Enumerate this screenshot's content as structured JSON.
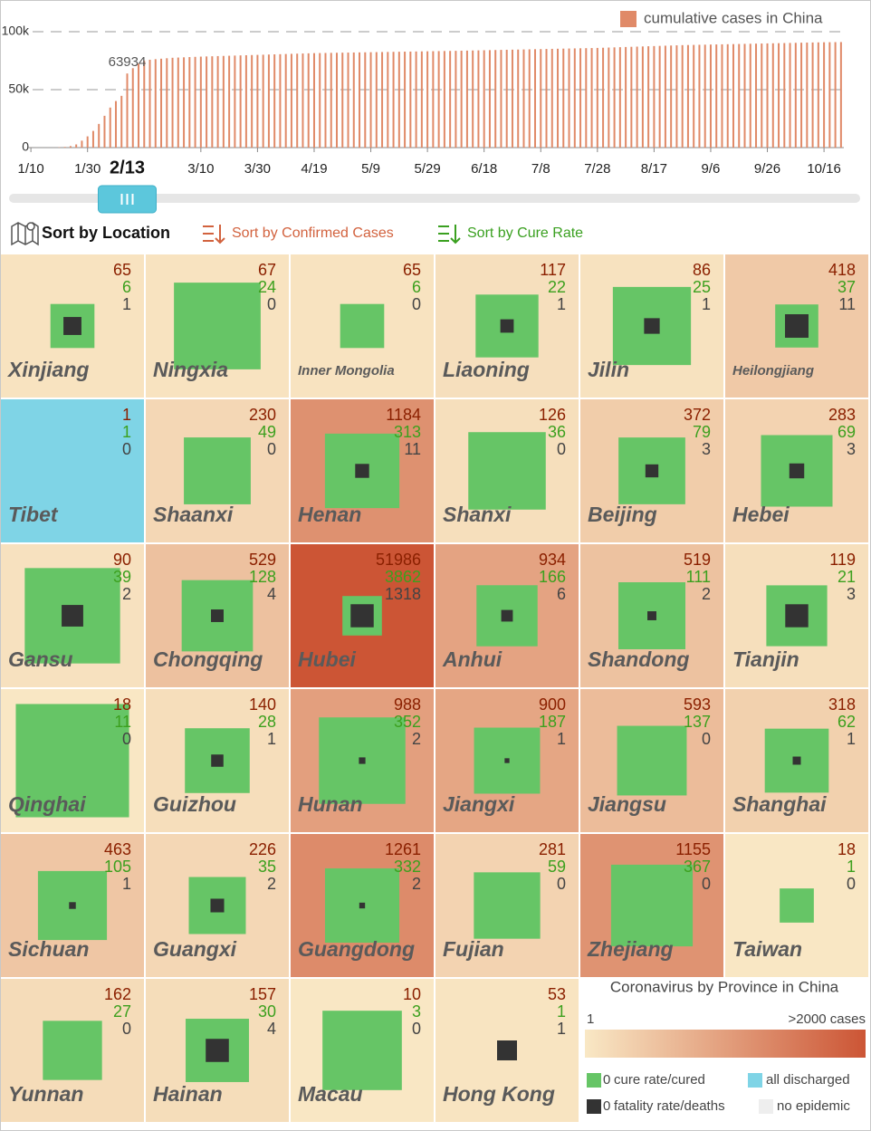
{
  "chart_data": [
    {
      "type": "bar",
      "series": [
        {
          "name": "cumulative cases in China",
          "color": "#e08a68",
          "values": [
            41,
            41,
            41,
            41,
            45,
            291,
            571,
            1287,
            2744,
            5974,
            9692,
            14380,
            20438,
            27440,
            34546,
            40171,
            44653,
            63934,
            68500,
            72436,
            75100,
            75800,
            76300,
            76700,
            77100,
            77500,
            77700,
            77900,
            78100,
            78300,
            78500,
            78650,
            78800,
            78950,
            79100,
            79250,
            79400,
            79550,
            79700,
            79850,
            80000,
            80150,
            80300,
            80450,
            80600,
            80750,
            80900,
            81050,
            81200,
            81350,
            81500,
            81580,
            81660,
            81740,
            81820,
            81900,
            81980,
            82060,
            82140,
            82220,
            82300,
            82380,
            82460,
            82540,
            82620,
            82700,
            82780,
            82860,
            82940,
            83020,
            83100,
            83180,
            83260,
            83340,
            83420,
            83500,
            83600,
            83700,
            83800,
            83900,
            84000,
            84100,
            84200,
            84300,
            84400,
            84500,
            84600,
            84700,
            84800,
            84900,
            85000,
            85100,
            85200,
            85300,
            85400,
            85500,
            85600,
            85700,
            85800,
            85900,
            86000,
            86160,
            86320,
            86480,
            86640,
            86800,
            86960,
            87120,
            87280,
            87440,
            87600,
            87760,
            87920,
            88080,
            88240,
            88400,
            88500,
            88600,
            88700,
            88800,
            88900,
            89000,
            89100,
            89200,
            89300,
            89400,
            89500,
            89600,
            89700,
            89800,
            89900,
            90000,
            90100,
            90200,
            90300,
            90400,
            90500,
            90600,
            90700,
            90800,
            90900,
            90950,
            91000,
            91050
          ]
        }
      ],
      "x": [
        0,
        2,
        4,
        6,
        8,
        10,
        12,
        14,
        16,
        18,
        20,
        22,
        24,
        26,
        28,
        30,
        32,
        34,
        36,
        38,
        40,
        42,
        44,
        46,
        48,
        50,
        52,
        54,
        56,
        58,
        60,
        62,
        64,
        66,
        68,
        70,
        72,
        74,
        76,
        78,
        80,
        82,
        84,
        86,
        88,
        90,
        92,
        94,
        96,
        98,
        100,
        102,
        104,
        106,
        108,
        110,
        112,
        114,
        116,
        118,
        120,
        122,
        124,
        126,
        128,
        130,
        132,
        134,
        136,
        138,
        140,
        142,
        144,
        146,
        148,
        150,
        152,
        154,
        156,
        158,
        160,
        162,
        164,
        166,
        168,
        170,
        172,
        174,
        176,
        178,
        180,
        182,
        184,
        186,
        188,
        190,
        192,
        194,
        196,
        198,
        200,
        202,
        204,
        206,
        208,
        210,
        212,
        214,
        216,
        218,
        220,
        222,
        224,
        226,
        228,
        230,
        232,
        234,
        236,
        238,
        240,
        242,
        244,
        246,
        248,
        250,
        252,
        254,
        256,
        258,
        260,
        262,
        264,
        266,
        268,
        270,
        272,
        274,
        276,
        278,
        280,
        282,
        284,
        286
      ],
      "xlim": [
        -1,
        287
      ],
      "xticks": [
        {
          "value": 0,
          "label": "1/10"
        },
        {
          "value": 20,
          "label": "1/30"
        },
        {
          "value": 60,
          "label": "3/10"
        },
        {
          "value": 80,
          "label": "3/30"
        },
        {
          "value": 100,
          "label": "4/19"
        },
        {
          "value": 120,
          "label": "5/9"
        },
        {
          "value": 140,
          "label": "5/29"
        },
        {
          "value": 160,
          "label": "6/18"
        },
        {
          "value": 180,
          "label": "7/8"
        },
        {
          "value": 200,
          "label": "7/28"
        },
        {
          "value": 220,
          "label": "8/17"
        },
        {
          "value": 240,
          "label": "9/6"
        },
        {
          "value": 260,
          "label": "9/26"
        },
        {
          "value": 280,
          "label": "10/16"
        }
      ],
      "current": {
        "value": 34,
        "label": "2/13"
      },
      "ylim": [
        0,
        100000
      ],
      "yticks": [
        0,
        {
          "value": 50000,
          "label": "50k"
        },
        {
          "value": 100000,
          "label": "100k"
        }
      ],
      "grid": true
    },
    {
      "type": "tile-grid",
      "title": "Coronavirus by Province in China",
      "columns": 6,
      "tiles": [
        {
          "name": "Xinjiang",
          "confirmed": 65,
          "cured": 6,
          "deaths": 1
        },
        {
          "name": "Ningxia",
          "confirmed": 67,
          "cured": 24,
          "deaths": 0
        },
        {
          "name": "Inner Mongolia",
          "confirmed": 65,
          "cured": 6,
          "deaths": 0
        },
        {
          "name": "Liaoning",
          "confirmed": 117,
          "cured": 22,
          "deaths": 1
        },
        {
          "name": "Jilin",
          "confirmed": 86,
          "cured": 25,
          "deaths": 1
        },
        {
          "name": "Heilongjiang",
          "confirmed": 418,
          "cured": 37,
          "deaths": 11
        },
        {
          "name": "Tibet",
          "confirmed": 1,
          "cured": 1,
          "deaths": 0
        },
        {
          "name": "Shaanxi",
          "confirmed": 230,
          "cured": 49,
          "deaths": 0
        },
        {
          "name": "Henan",
          "confirmed": 1184,
          "cured": 313,
          "deaths": 11
        },
        {
          "name": "Shanxi",
          "confirmed": 126,
          "cured": 36,
          "deaths": 0
        },
        {
          "name": "Beijing",
          "confirmed": 372,
          "cured": 79,
          "deaths": 3
        },
        {
          "name": "Hebei",
          "confirmed": 283,
          "cured": 69,
          "deaths": 3
        },
        {
          "name": "Gansu",
          "confirmed": 90,
          "cured": 39,
          "deaths": 2
        },
        {
          "name": "Chongqing",
          "confirmed": 529,
          "cured": 128,
          "deaths": 4
        },
        {
          "name": "Hubei",
          "confirmed": 51986,
          "cured": 3862,
          "deaths": 1318
        },
        {
          "name": "Anhui",
          "confirmed": 934,
          "cured": 166,
          "deaths": 6
        },
        {
          "name": "Shandong",
          "confirmed": 519,
          "cured": 111,
          "deaths": 2
        },
        {
          "name": "Tianjin",
          "confirmed": 119,
          "cured": 21,
          "deaths": 3
        },
        {
          "name": "Qinghai",
          "confirmed": 18,
          "cured": 11,
          "deaths": 0
        },
        {
          "name": "Guizhou",
          "confirmed": 140,
          "cured": 28,
          "deaths": 1
        },
        {
          "name": "Hunan",
          "confirmed": 988,
          "cured": 352,
          "deaths": 2
        },
        {
          "name": "Jiangxi",
          "confirmed": 900,
          "cured": 187,
          "deaths": 1
        },
        {
          "name": "Jiangsu",
          "confirmed": 593,
          "cured": 137,
          "deaths": 0
        },
        {
          "name": "Shanghai",
          "confirmed": 318,
          "cured": 62,
          "deaths": 1
        },
        {
          "name": "Sichuan",
          "confirmed": 463,
          "cured": 105,
          "deaths": 1
        },
        {
          "name": "Guangxi",
          "confirmed": 226,
          "cured": 35,
          "deaths": 2
        },
        {
          "name": "Guangdong",
          "confirmed": 1261,
          "cured": 332,
          "deaths": 2
        },
        {
          "name": "Fujian",
          "confirmed": 281,
          "cured": 59,
          "deaths": 0
        },
        {
          "name": "Zhejiang",
          "confirmed": 1155,
          "cured": 367,
          "deaths": 0
        },
        {
          "name": "Taiwan",
          "confirmed": 18,
          "cured": 1,
          "deaths": 0
        },
        {
          "name": "Yunnan",
          "confirmed": 162,
          "cured": 27,
          "deaths": 0
        },
        {
          "name": "Hainan",
          "confirmed": 157,
          "cured": 30,
          "deaths": 4
        },
        {
          "name": "Macau",
          "confirmed": 10,
          "cured": 3,
          "deaths": 0
        },
        {
          "name": "Hong Kong",
          "confirmed": 53,
          "cured": 1,
          "deaths": 1
        }
      ],
      "color_scale": {
        "min": 1,
        "max": {
          "value": 2000,
          "label": ">2000 cases"
        },
        "colors": [
          "#f9e8c5",
          "#cc5535"
        ]
      },
      "legend": [
        {
          "sample": 0,
          "label": "cure rate/cured",
          "color": "#66c566"
        },
        {
          "label": "all discharged",
          "color": "#7fd4e6"
        },
        {
          "sample": 0,
          "label": "fatality rate/deaths",
          "color": "#333333"
        },
        {
          "label": "no epidemic",
          "color": "#eeeeee"
        }
      ]
    }
  ],
  "controls": {
    "sort_buttons": [
      "Sort by Location",
      "Sort by Confirmed Cases",
      "Sort by Cure Rate"
    ]
  }
}
